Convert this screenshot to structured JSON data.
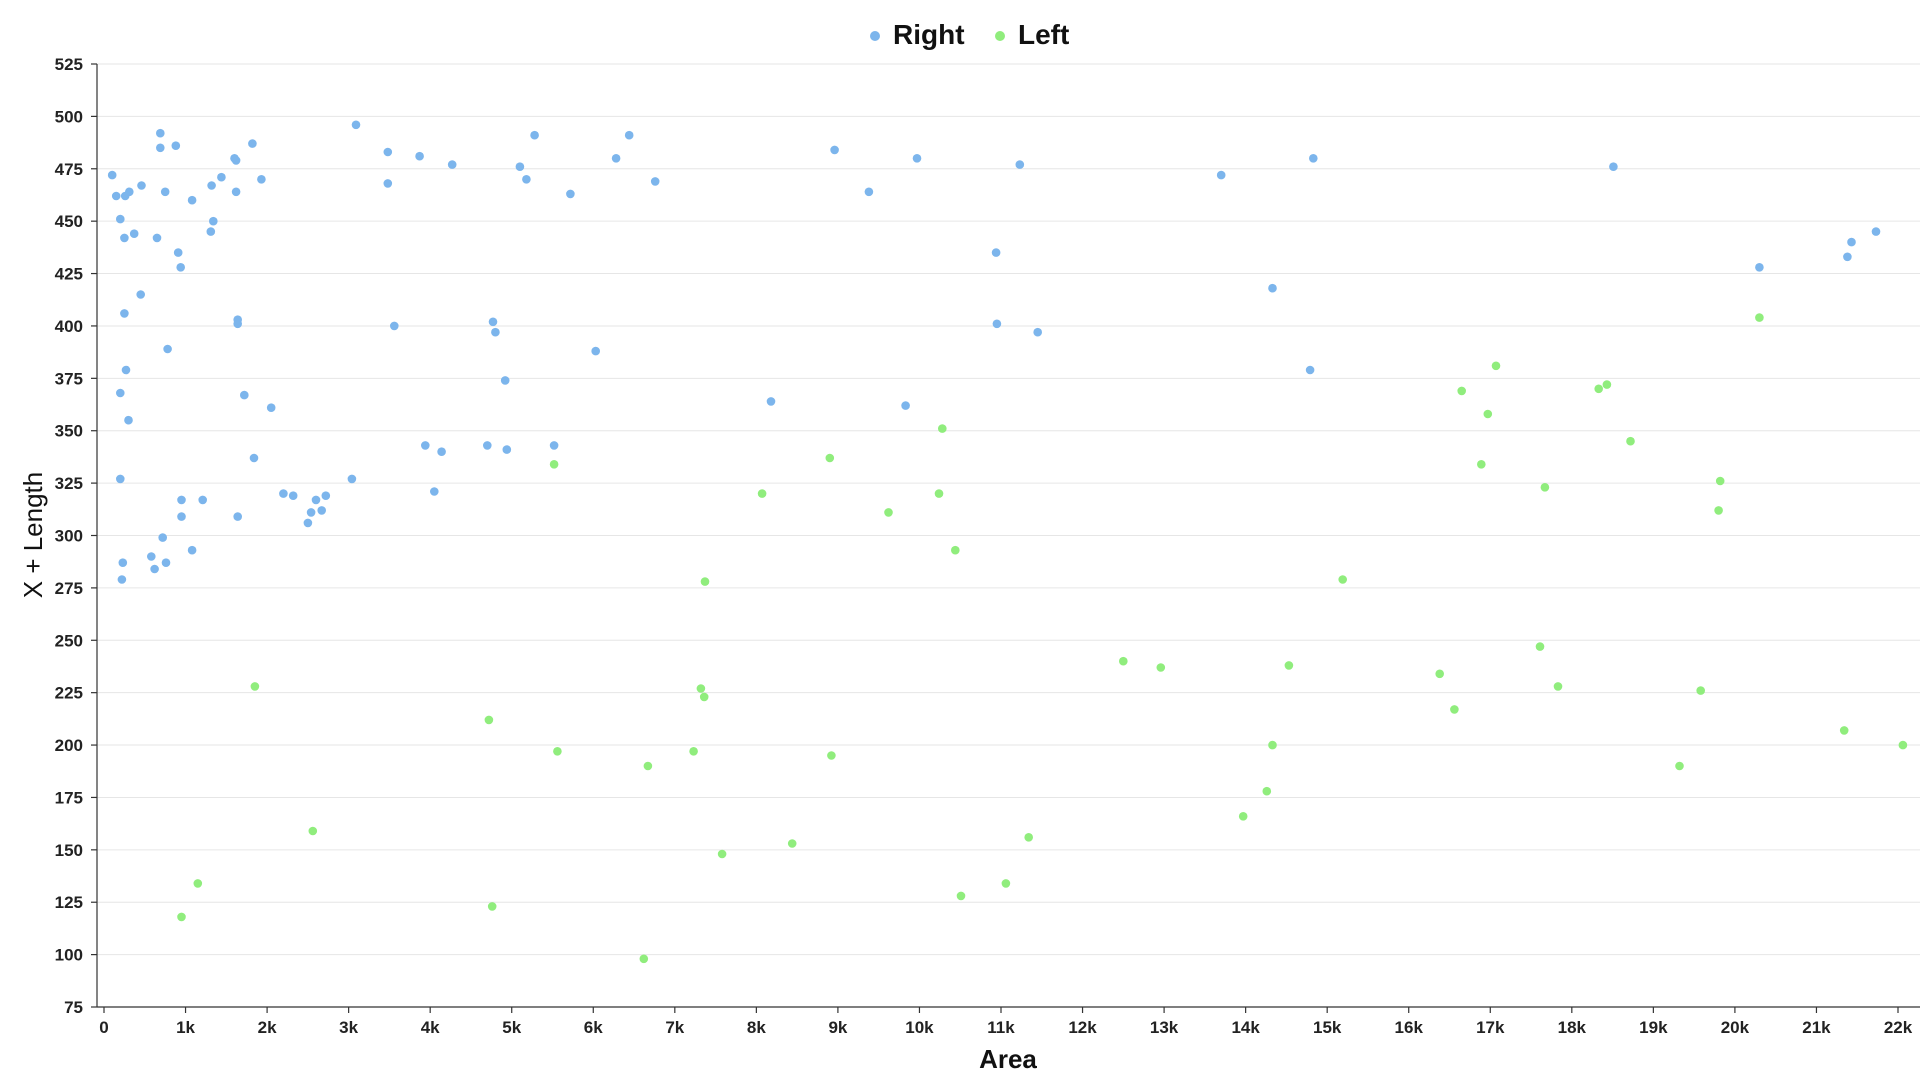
{
  "chart_data": {
    "type": "scatter",
    "xlabel": "Area",
    "ylabel": "X + Length",
    "xlim": [
      0,
      22300
    ],
    "ylim": [
      75,
      525
    ],
    "x_ticks": [
      0,
      1000,
      2000,
      3000,
      4000,
      5000,
      6000,
      7000,
      8000,
      9000,
      10000,
      11000,
      12000,
      13000,
      14000,
      15000,
      16000,
      17000,
      18000,
      19000,
      20000,
      21000,
      22000
    ],
    "x_tick_labels": [
      "0",
      "1k",
      "2k",
      "3k",
      "4k",
      "5k",
      "6k",
      "7k",
      "8k",
      "9k",
      "10k",
      "11k",
      "12k",
      "13k",
      "14k",
      "15k",
      "16k",
      "17k",
      "18k",
      "19k",
      "20k",
      "21k",
      "22k"
    ],
    "y_ticks": [
      75,
      100,
      125,
      150,
      175,
      200,
      225,
      250,
      275,
      300,
      325,
      350,
      375,
      400,
      425,
      450,
      475,
      500,
      525
    ],
    "y_tick_labels": [
      "75",
      "100",
      "125",
      "150",
      "175",
      "200",
      "225",
      "250",
      "275",
      "300",
      "325",
      "350",
      "375",
      "400",
      "425",
      "450",
      "475",
      "500",
      "525"
    ],
    "grid": "horizontal",
    "legend_position": "top-center",
    "series": [
      {
        "name": "Right",
        "color": "#7cb5ec",
        "points": [
          [
            100,
            472
          ],
          [
            150,
            462
          ],
          [
            200,
            327
          ],
          [
            200,
            368
          ],
          [
            200,
            451
          ],
          [
            220,
            279
          ],
          [
            230,
            287
          ],
          [
            250,
            442
          ],
          [
            250,
            406
          ],
          [
            260,
            462
          ],
          [
            270,
            379
          ],
          [
            300,
            355
          ],
          [
            310,
            464
          ],
          [
            370,
            444
          ],
          [
            450,
            415
          ],
          [
            460,
            467
          ],
          [
            580,
            290
          ],
          [
            620,
            284
          ],
          [
            650,
            442
          ],
          [
            690,
            492
          ],
          [
            690,
            485
          ],
          [
            720,
            299
          ],
          [
            750,
            464
          ],
          [
            760,
            287
          ],
          [
            780,
            389
          ],
          [
            880,
            486
          ],
          [
            910,
            435
          ],
          [
            940,
            428
          ],
          [
            950,
            317
          ],
          [
            950,
            309
          ],
          [
            1080,
            460
          ],
          [
            1080,
            293
          ],
          [
            1210,
            317
          ],
          [
            1310,
            445
          ],
          [
            1320,
            467
          ],
          [
            1340,
            450
          ],
          [
            1440,
            471
          ],
          [
            1600,
            480
          ],
          [
            1620,
            479
          ],
          [
            1620,
            464
          ],
          [
            1640,
            403
          ],
          [
            1640,
            401
          ],
          [
            1640,
            309
          ],
          [
            1720,
            367
          ],
          [
            1820,
            487
          ],
          [
            1840,
            337
          ],
          [
            1930,
            470
          ],
          [
            2050,
            361
          ],
          [
            2200,
            320
          ],
          [
            2320,
            319
          ],
          [
            2500,
            306
          ],
          [
            2540,
            311
          ],
          [
            2600,
            317
          ],
          [
            2670,
            312
          ],
          [
            2720,
            319
          ],
          [
            3040,
            327
          ],
          [
            3090,
            496
          ],
          [
            3480,
            483
          ],
          [
            3480,
            468
          ],
          [
            3560,
            400
          ],
          [
            3870,
            481
          ],
          [
            3940,
            343
          ],
          [
            4050,
            321
          ],
          [
            4140,
            340
          ],
          [
            4270,
            477
          ],
          [
            4700,
            343
          ],
          [
            4770,
            402
          ],
          [
            4800,
            397
          ],
          [
            4920,
            374
          ],
          [
            4940,
            341
          ],
          [
            5100,
            476
          ],
          [
            5180,
            470
          ],
          [
            5280,
            491
          ],
          [
            5520,
            343
          ],
          [
            5720,
            463
          ],
          [
            6030,
            388
          ],
          [
            6280,
            480
          ],
          [
            6440,
            491
          ],
          [
            6760,
            469
          ],
          [
            8180,
            364
          ],
          [
            8960,
            484
          ],
          [
            9380,
            464
          ],
          [
            9830,
            362
          ],
          [
            9970,
            480
          ],
          [
            10940,
            435
          ],
          [
            10950,
            401
          ],
          [
            11230,
            477
          ],
          [
            11450,
            397
          ],
          [
            13700,
            472
          ],
          [
            14330,
            418
          ],
          [
            14790,
            379
          ],
          [
            14830,
            480
          ],
          [
            18510,
            476
          ],
          [
            20300,
            428
          ],
          [
            21380,
            433
          ],
          [
            21430,
            440
          ],
          [
            21730,
            445
          ]
        ]
      },
      {
        "name": "Left",
        "color": "#90ed7d",
        "points": [
          [
            950,
            118
          ],
          [
            1150,
            134
          ],
          [
            1850,
            228
          ],
          [
            2560,
            159
          ],
          [
            4720,
            212
          ],
          [
            4760,
            123
          ],
          [
            5520,
            334
          ],
          [
            5560,
            197
          ],
          [
            6620,
            98
          ],
          [
            6670,
            190
          ],
          [
            7230,
            197
          ],
          [
            7320,
            227
          ],
          [
            7360,
            223
          ],
          [
            7370,
            278
          ],
          [
            7580,
            148
          ],
          [
            8070,
            320
          ],
          [
            8440,
            153
          ],
          [
            8900,
            337
          ],
          [
            8920,
            195
          ],
          [
            9620,
            311
          ],
          [
            10240,
            320
          ],
          [
            10280,
            351
          ],
          [
            10440,
            293
          ],
          [
            10510,
            128
          ],
          [
            11060,
            134
          ],
          [
            11340,
            156
          ],
          [
            12500,
            240
          ],
          [
            12960,
            237
          ],
          [
            13970,
            166
          ],
          [
            14260,
            178
          ],
          [
            14330,
            200
          ],
          [
            14530,
            238
          ],
          [
            15190,
            279
          ],
          [
            16380,
            234
          ],
          [
            16560,
            217
          ],
          [
            16650,
            369
          ],
          [
            16890,
            334
          ],
          [
            16970,
            358
          ],
          [
            17070,
            381
          ],
          [
            17610,
            247
          ],
          [
            17670,
            323
          ],
          [
            17830,
            228
          ],
          [
            18330,
            370
          ],
          [
            18430,
            372
          ],
          [
            18720,
            345
          ],
          [
            19320,
            190
          ],
          [
            19580,
            226
          ],
          [
            19800,
            312
          ],
          [
            19820,
            326
          ],
          [
            20300,
            404
          ],
          [
            21340,
            207
          ],
          [
            22060,
            200
          ]
        ]
      }
    ]
  }
}
